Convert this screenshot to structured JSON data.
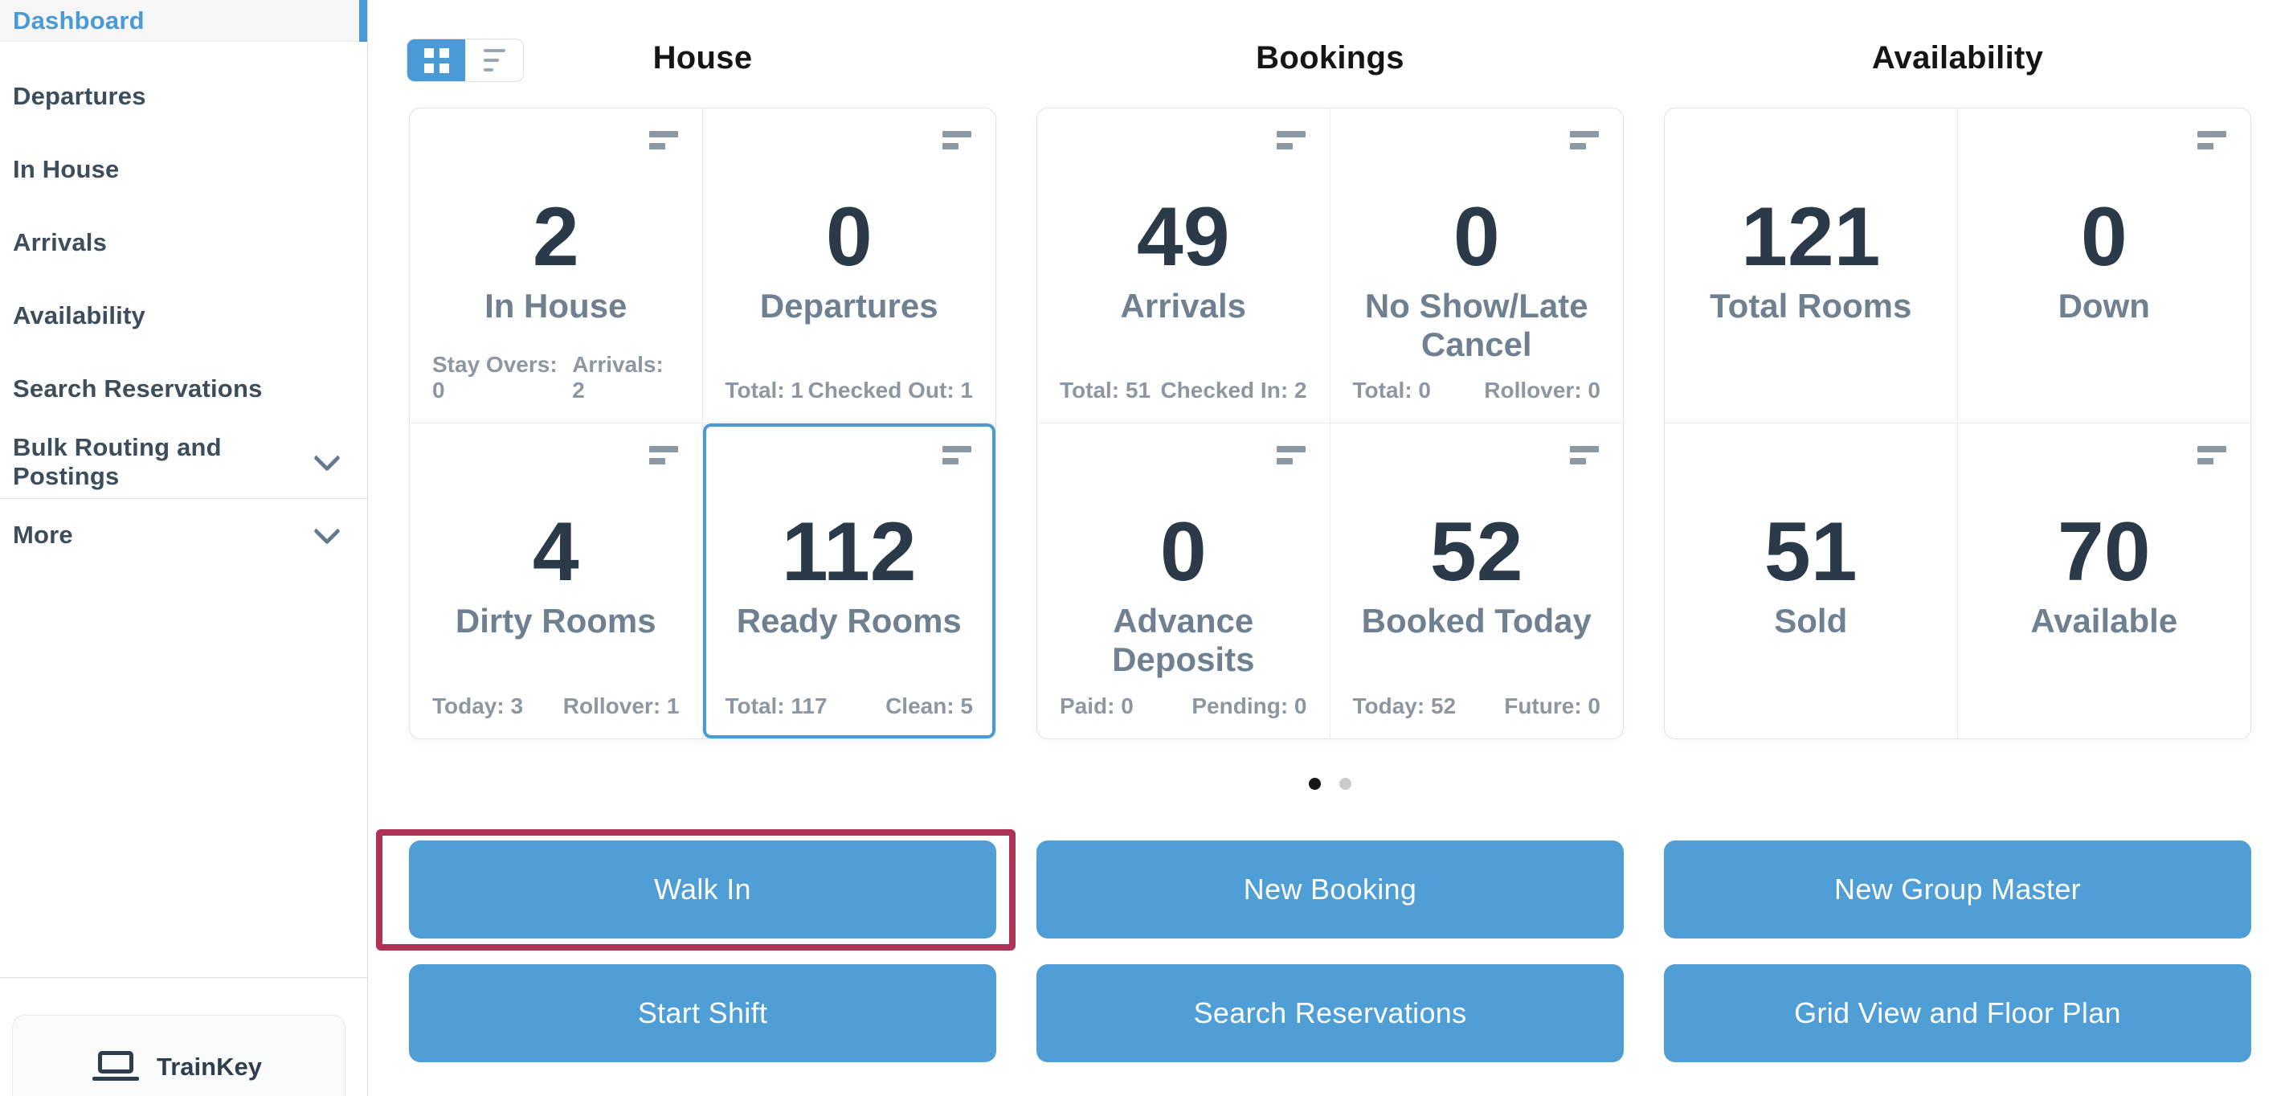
{
  "sidebar": {
    "items": [
      {
        "label": "Dashboard",
        "active": true
      },
      {
        "label": "Departures"
      },
      {
        "label": "In House"
      },
      {
        "label": "Arrivals"
      },
      {
        "label": "Availability"
      },
      {
        "label": "Search Reservations"
      },
      {
        "label": "Bulk Routing and Postings",
        "chevron": true
      },
      {
        "label": "More",
        "chevron": true,
        "section_divider": true
      }
    ],
    "trainkey_label": "TrainKey"
  },
  "view_toggle": {
    "grid_option": "grid-view",
    "list_option": "list-view",
    "active": "grid-view"
  },
  "columns": [
    {
      "title": "House",
      "cards": [
        {
          "value": "2",
          "label": "In House",
          "foot_left": "Stay Overs: 0",
          "foot_right": "Arrivals: 2",
          "menu_icon": true
        },
        {
          "value": "0",
          "label": "Departures",
          "foot_left": "Total: 1",
          "foot_right": "Checked Out: 1",
          "menu_icon": true
        },
        {
          "value": "4",
          "label": "Dirty Rooms",
          "foot_left": "Today: 3",
          "foot_right": "Rollover: 1",
          "menu_icon": true
        },
        {
          "value": "112",
          "label": "Ready Rooms",
          "foot_left": "Total: 117",
          "foot_right": "Clean: 5",
          "menu_icon": true,
          "selected": true
        }
      ]
    },
    {
      "title": "Bookings",
      "cards": [
        {
          "value": "49",
          "label": "Arrivals",
          "foot_left": "Total: 51",
          "foot_right": "Checked In: 2",
          "menu_icon": true
        },
        {
          "value": "0",
          "label": "No Show/Late Cancel",
          "foot_left": "Total: 0",
          "foot_right": "Rollover: 0",
          "menu_icon": true
        },
        {
          "value": "0",
          "label": "Advance Deposits",
          "foot_left": "Paid: 0",
          "foot_right": "Pending: 0",
          "menu_icon": true
        },
        {
          "value": "52",
          "label": "Booked Today",
          "foot_left": "Today: 52",
          "foot_right": "Future: 0",
          "menu_icon": true
        }
      ]
    },
    {
      "title": "Availability",
      "cards": [
        {
          "value": "121",
          "label": "Total Rooms",
          "menu_icon": false
        },
        {
          "value": "0",
          "label": "Down",
          "menu_icon": true
        },
        {
          "value": "51",
          "label": "Sold",
          "menu_icon": false
        },
        {
          "value": "70",
          "label": "Available",
          "menu_icon": true
        }
      ]
    }
  ],
  "pagination": {
    "dots": [
      {
        "active": true
      },
      {
        "active": false
      }
    ]
  },
  "actions": {
    "row1": [
      {
        "label": "Walk In",
        "highlighted": true
      },
      {
        "label": "New Booking"
      },
      {
        "label": "New Group Master"
      }
    ],
    "row2": [
      {
        "label": "Start Shift"
      },
      {
        "label": "Search Reservations"
      },
      {
        "label": "Grid View and Floor Plan"
      }
    ]
  },
  "colors": {
    "accent_blue": "#4a9bd5",
    "button_blue": "#4f9ed6",
    "highlight_red": "#ae3457",
    "selected_card_border": "#4a9bd5",
    "active_dot": "#161616",
    "inactive_dot": "#cbcbcb",
    "nav_text": "#3c4d5c",
    "card_number": "#2b3a49",
    "card_label": "#6f8191",
    "card_footnote": "#8d97a1"
  }
}
